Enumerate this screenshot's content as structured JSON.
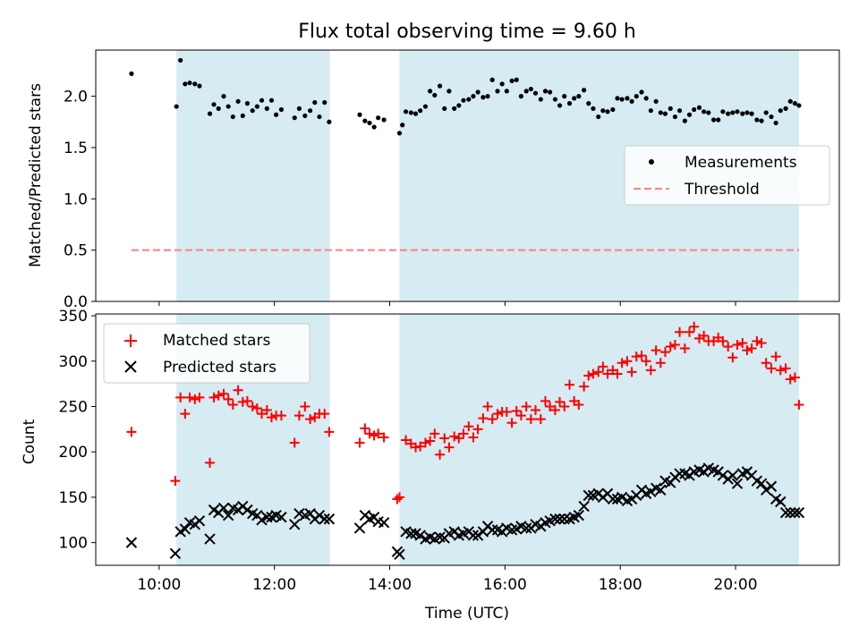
{
  "chart_data": [
    {
      "type": "scatter",
      "title": "Flux total observing time = 9.60 h",
      "ylabel": "Matched/Predicted stars",
      "xlim": [
        8.9,
        21.8
      ],
      "ylim": [
        0,
        2.45
      ],
      "yticks": [
        0.0,
        0.5,
        1.0,
        1.5,
        2.0
      ],
      "ytick_labels": [
        "0.0",
        "0.5",
        "1.0",
        "1.5",
        "2.0"
      ],
      "shaded_intervals": [
        [
          10.3,
          12.96
        ],
        [
          14.17,
          21.1
        ]
      ],
      "threshold": {
        "label": "Threshold",
        "value": 0.5,
        "x_range": [
          9.52,
          21.1
        ],
        "color": "#ff7f7f"
      },
      "legend": {
        "position": "center-right",
        "entries": [
          "Measurements",
          "Threshold"
        ]
      },
      "series": [
        {
          "name": "Measurements",
          "marker": "dot",
          "color": "#000000",
          "x": [
            9.52,
            10.3,
            10.37,
            10.45,
            10.53,
            10.62,
            10.7,
            10.88,
            10.95,
            11.03,
            11.12,
            11.2,
            11.28,
            11.37,
            11.45,
            11.53,
            11.62,
            11.7,
            11.78,
            11.87,
            11.95,
            12.03,
            12.12,
            12.35,
            12.43,
            12.53,
            12.62,
            12.7,
            12.78,
            12.87,
            12.95,
            13.48,
            13.57,
            13.65,
            13.73,
            13.8,
            13.9,
            14.17,
            14.22,
            14.28,
            14.37,
            14.45,
            14.53,
            14.62,
            14.7,
            14.78,
            14.87,
            14.95,
            15.03,
            15.12,
            15.2,
            15.28,
            15.37,
            15.45,
            15.53,
            15.62,
            15.7,
            15.78,
            15.87,
            15.95,
            16.03,
            16.12,
            16.2,
            16.28,
            16.37,
            16.45,
            16.53,
            16.62,
            16.7,
            16.78,
            16.87,
            16.95,
            17.03,
            17.12,
            17.2,
            17.28,
            17.37,
            17.45,
            17.53,
            17.62,
            17.7,
            17.78,
            17.87,
            17.95,
            18.03,
            18.12,
            18.2,
            18.28,
            18.37,
            18.45,
            18.53,
            18.62,
            18.7,
            18.78,
            18.87,
            18.95,
            19.03,
            19.12,
            19.2,
            19.28,
            19.37,
            19.45,
            19.53,
            19.62,
            19.7,
            19.78,
            19.87,
            19.95,
            20.03,
            20.12,
            20.2,
            20.28,
            20.37,
            20.45,
            20.53,
            20.62,
            20.7,
            20.78,
            20.87,
            20.95,
            21.03,
            21.1
          ],
          "y": [
            2.22,
            1.9,
            2.35,
            2.12,
            2.13,
            2.12,
            2.1,
            1.83,
            1.92,
            1.88,
            2.0,
            1.9,
            1.8,
            1.95,
            1.81,
            1.93,
            1.86,
            1.9,
            1.96,
            1.88,
            1.96,
            1.82,
            1.87,
            1.79,
            1.88,
            1.81,
            1.86,
            1.94,
            1.8,
            1.94,
            1.75,
            1.82,
            1.76,
            1.74,
            1.7,
            1.79,
            1.77,
            1.64,
            1.72,
            1.85,
            1.84,
            1.83,
            1.86,
            1.9,
            2.05,
            2.01,
            2.1,
            1.88,
            2.05,
            1.88,
            1.91,
            1.96,
            1.97,
            2.0,
            2.04,
            1.99,
            2.0,
            2.16,
            2.05,
            2.12,
            2.05,
            2.15,
            2.16,
            2.0,
            2.05,
            2.07,
            2.03,
            1.97,
            2.05,
            2.04,
            1.97,
            1.91,
            2.0,
            1.93,
            1.98,
            2.0,
            2.06,
            1.93,
            1.88,
            1.8,
            1.86,
            1.85,
            1.87,
            1.98,
            1.97,
            1.98,
            1.95,
            2.0,
            2.04,
            1.98,
            1.86,
            1.95,
            1.84,
            1.83,
            1.88,
            1.8,
            1.86,
            1.76,
            1.82,
            1.87,
            1.89,
            1.85,
            1.84,
            1.77,
            1.77,
            1.85,
            1.83,
            1.84,
            1.85,
            1.83,
            1.84,
            1.83,
            1.77,
            1.76,
            1.84,
            1.8,
            1.74,
            1.86,
            1.88,
            1.95,
            1.93,
            1.91
          ]
        }
      ]
    },
    {
      "type": "scatter",
      "xlabel": "Time (UTC)",
      "ylabel": "Count",
      "xlim": [
        8.9,
        21.8
      ],
      "ylim": [
        75,
        352
      ],
      "xticks": [
        10,
        12,
        14,
        16,
        18,
        20
      ],
      "xtick_labels": [
        "10:00",
        "12:00",
        "14:00",
        "16:00",
        "18:00",
        "20:00"
      ],
      "yticks": [
        100,
        150,
        200,
        250,
        300,
        350
      ],
      "ytick_labels": [
        "100",
        "150",
        "200",
        "250",
        "300",
        "350"
      ],
      "shaded_intervals": [
        [
          10.3,
          12.96
        ],
        [
          14.17,
          21.1
        ]
      ],
      "legend": {
        "position": "top-left",
        "entries": [
          "Matched stars",
          "Predicted stars"
        ]
      },
      "series": [
        {
          "name": "Matched stars",
          "marker": "plus",
          "color": "#ff0000",
          "x": [
            9.52,
            10.28,
            10.37,
            10.45,
            10.53,
            10.62,
            10.7,
            10.88,
            10.95,
            11.03,
            11.12,
            11.2,
            11.28,
            11.37,
            11.45,
            11.53,
            11.62,
            11.7,
            11.78,
            11.87,
            11.95,
            12.03,
            12.12,
            12.35,
            12.43,
            12.53,
            12.62,
            12.7,
            12.78,
            12.87,
            12.95,
            13.48,
            13.57,
            13.65,
            13.73,
            13.8,
            13.9,
            14.13,
            14.17,
            14.28,
            14.37,
            14.45,
            14.53,
            14.62,
            14.7,
            14.78,
            14.87,
            14.95,
            15.03,
            15.12,
            15.2,
            15.28,
            15.37,
            15.45,
            15.53,
            15.62,
            15.7,
            15.78,
            15.87,
            15.95,
            16.03,
            16.12,
            16.2,
            16.28,
            16.37,
            16.45,
            16.53,
            16.62,
            16.7,
            16.78,
            16.87,
            16.95,
            17.03,
            17.12,
            17.2,
            17.28,
            17.37,
            17.45,
            17.53,
            17.62,
            17.7,
            17.78,
            17.87,
            17.95,
            18.03,
            18.12,
            18.2,
            18.28,
            18.37,
            18.45,
            18.53,
            18.62,
            18.7,
            18.78,
            18.87,
            18.95,
            19.03,
            19.12,
            19.2,
            19.28,
            19.37,
            19.45,
            19.53,
            19.62,
            19.7,
            19.78,
            19.87,
            19.95,
            20.03,
            20.12,
            20.2,
            20.28,
            20.37,
            20.45,
            20.53,
            20.62,
            20.7,
            20.78,
            20.87,
            20.95,
            21.03,
            21.1
          ],
          "y": [
            222,
            168,
            260,
            242,
            260,
            258,
            260,
            188,
            260,
            262,
            264,
            258,
            252,
            268,
            255,
            256,
            250,
            248,
            242,
            246,
            238,
            240,
            240,
            210,
            240,
            250,
            236,
            238,
            242,
            242,
            222,
            210,
            226,
            220,
            218,
            220,
            216,
            148,
            150,
            213,
            209,
            205,
            206,
            210,
            212,
            220,
            197,
            215,
            205,
            217,
            215,
            220,
            228,
            216,
            225,
            237,
            250,
            236,
            242,
            244,
            244,
            232,
            245,
            240,
            250,
            236,
            246,
            236,
            256,
            250,
            246,
            255,
            250,
            274,
            256,
            252,
            272,
            284,
            286,
            288,
            294,
            286,
            290,
            286,
            298,
            300,
            288,
            305,
            306,
            300,
            290,
            312,
            298,
            310,
            316,
            318,
            332,
            314,
            332,
            338,
            325,
            328,
            322,
            322,
            326,
            322,
            316,
            304,
            318,
            320,
            312,
            314,
            322,
            320,
            298,
            292,
            305,
            290,
            292,
            280,
            282,
            252
          ]
        },
        {
          "name": "Predicted stars",
          "marker": "x",
          "color": "#000000",
          "x": [
            9.52,
            10.28,
            10.37,
            10.45,
            10.53,
            10.62,
            10.7,
            10.88,
            10.95,
            11.03,
            11.12,
            11.2,
            11.28,
            11.37,
            11.45,
            11.53,
            11.62,
            11.7,
            11.78,
            11.87,
            11.95,
            12.03,
            12.12,
            12.35,
            12.43,
            12.53,
            12.62,
            12.7,
            12.78,
            12.87,
            12.95,
            13.48,
            13.57,
            13.65,
            13.73,
            13.8,
            13.9,
            14.13,
            14.17,
            14.28,
            14.37,
            14.45,
            14.53,
            14.62,
            14.7,
            14.78,
            14.87,
            14.95,
            15.03,
            15.12,
            15.2,
            15.28,
            15.37,
            15.45,
            15.53,
            15.62,
            15.7,
            15.78,
            15.87,
            15.95,
            16.03,
            16.12,
            16.2,
            16.28,
            16.37,
            16.45,
            16.53,
            16.62,
            16.7,
            16.78,
            16.87,
            16.95,
            17.03,
            17.12,
            17.2,
            17.28,
            17.37,
            17.45,
            17.53,
            17.62,
            17.7,
            17.78,
            17.87,
            17.95,
            18.03,
            18.12,
            18.2,
            18.28,
            18.37,
            18.45,
            18.53,
            18.62,
            18.7,
            18.78,
            18.87,
            18.95,
            19.03,
            19.12,
            19.2,
            19.28,
            19.37,
            19.45,
            19.53,
            19.62,
            19.7,
            19.78,
            19.87,
            19.95,
            20.03,
            20.12,
            20.2,
            20.28,
            20.37,
            20.45,
            20.53,
            20.62,
            20.7,
            20.78,
            20.87,
            20.95,
            21.03,
            21.1
          ],
          "y": [
            100,
            88,
            112,
            115,
            122,
            120,
            124,
            104,
            136,
            133,
            138,
            130,
            138,
            136,
            140,
            136,
            132,
            130,
            125,
            128,
            128,
            130,
            128,
            120,
            132,
            130,
            132,
            126,
            130,
            126,
            126,
            116,
            130,
            126,
            128,
            123,
            122,
            90,
            87,
            112,
            110,
            110,
            108,
            104,
            106,
            104,
            106,
            105,
            110,
            112,
            108,
            110,
            112,
            108,
            108,
            112,
            118,
            114,
            114,
            112,
            116,
            114,
            115,
            118,
            116,
            116,
            120,
            118,
            122,
            124,
            126,
            126,
            126,
            126,
            128,
            130,
            140,
            152,
            152,
            154,
            150,
            154,
            148,
            148,
            150,
            146,
            148,
            152,
            158,
            154,
            156,
            160,
            158,
            168,
            166,
            172,
            176,
            176,
            174,
            178,
            180,
            178,
            182,
            180,
            178,
            174,
            170,
            174,
            165,
            176,
            178,
            174,
            168,
            165,
            158,
            162,
            148,
            145,
            133,
            133,
            133,
            133
          ]
        }
      ]
    }
  ]
}
